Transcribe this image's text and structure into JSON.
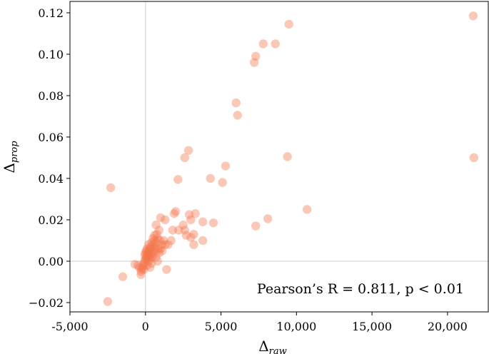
{
  "chart_data": {
    "type": "scatter",
    "xlabel": "Δ",
    "xlabel_sub": "raw",
    "ylabel": "Δ",
    "ylabel_sub": "prop",
    "xlim": [
      -5000,
      22700
    ],
    "ylim": [
      -0.0245,
      0.1255
    ],
    "xticks": [
      -5000,
      0,
      5000,
      10000,
      15000,
      20000
    ],
    "xtick_labels": [
      "-5,000",
      "0",
      "5,000",
      "10,000",
      "15,000",
      "20,000"
    ],
    "yticks": [
      -0.02,
      0.0,
      0.02,
      0.04,
      0.06,
      0.08,
      0.1,
      0.12
    ],
    "ytick_labels": [
      "−0.02",
      "0.00",
      "0.02",
      "0.04",
      "0.06",
      "0.08",
      "0.10",
      "0.12"
    ],
    "annotation": "Pearson’s R = 0.811, p < 0.01",
    "annotation_position": "bottom-right",
    "reference_lines": {
      "x": 0,
      "y": 0
    },
    "grid": false,
    "point_color": "#f4754a",
    "points": [
      [
        21700,
        0.1185
      ],
      [
        21750,
        0.05
      ],
      [
        9500,
        0.1145
      ],
      [
        8600,
        0.105
      ],
      [
        7800,
        0.105
      ],
      [
        7300,
        0.099
      ],
      [
        7200,
        0.096
      ],
      [
        6000,
        0.0765
      ],
      [
        6100,
        0.0705
      ],
      [
        2850,
        0.0535
      ],
      [
        2600,
        0.05
      ],
      [
        2150,
        0.0395
      ],
      [
        5300,
        0.046
      ],
      [
        4300,
        0.04
      ],
      [
        5100,
        0.038
      ],
      [
        9400,
        0.0505
      ],
      [
        10700,
        0.025
      ],
      [
        8100,
        0.0205
      ],
      [
        7300,
        0.017
      ],
      [
        -2300,
        0.0355
      ],
      [
        -2500,
        -0.0195
      ],
      [
        -1500,
        -0.0075
      ],
      [
        3800,
        0.019
      ],
      [
        4500,
        0.0185
      ],
      [
        3300,
        0.023
      ],
      [
        2900,
        0.0225
      ],
      [
        3000,
        0.02
      ],
      [
        2000,
        0.024
      ],
      [
        1900,
        0.023
      ],
      [
        2500,
        0.0175
      ],
      [
        2600,
        0.015
      ],
      [
        2200,
        0.015
      ],
      [
        1300,
        0.02
      ],
      [
        1000,
        0.021
      ],
      [
        1700,
        0.01
      ],
      [
        1800,
        0.015
      ],
      [
        2700,
        0.0125
      ],
      [
        3200,
        0.013
      ],
      [
        3000,
        0.0115
      ],
      [
        3800,
        0.01
      ],
      [
        3200,
        0.008
      ],
      [
        1400,
        -0.004
      ],
      [
        1100,
        0.005
      ],
      [
        1300,
        0.008
      ],
      [
        1500,
        0.008
      ],
      [
        1200,
        0.01
      ],
      [
        900,
        0.015
      ],
      [
        700,
        0.0175
      ],
      [
        600,
        0.0125
      ],
      [
        500,
        0.011
      ],
      [
        400,
        0.009
      ],
      [
        350,
        0.007
      ],
      [
        300,
        0.006
      ],
      [
        250,
        0.005
      ],
      [
        200,
        0.0045
      ],
      [
        150,
        0.0035
      ],
      [
        100,
        0.0025
      ],
      [
        50,
        0.002
      ],
      [
        0,
        0.001
      ],
      [
        -50,
        0.0
      ],
      [
        -100,
        -0.001
      ],
      [
        -150,
        -0.002
      ],
      [
        -200,
        -0.003
      ],
      [
        -250,
        -0.004
      ],
      [
        -300,
        -0.005
      ],
      [
        -400,
        -0.003
      ],
      [
        -500,
        -0.002
      ],
      [
        -700,
        -0.0015
      ],
      [
        -300,
        -0.0065
      ],
      [
        -100,
        -0.004
      ],
      [
        100,
        -0.002
      ],
      [
        200,
        0.0
      ],
      [
        300,
        0.001
      ],
      [
        400,
        0.003
      ],
      [
        500,
        0.005
      ],
      [
        600,
        0.007
      ],
      [
        700,
        0.009
      ],
      [
        800,
        0.011
      ],
      [
        600,
        0.004
      ],
      [
        700,
        0.002
      ],
      [
        800,
        0.0
      ],
      [
        900,
        0.004
      ],
      [
        1000,
        0.006
      ],
      [
        1100,
        0.008
      ],
      [
        400,
        -0.001
      ],
      [
        300,
        -0.003
      ],
      [
        200,
        0.008
      ],
      [
        100,
        0.006
      ],
      [
        0,
        0.004
      ],
      [
        -50,
        0.003
      ],
      [
        500,
        0.008
      ],
      [
        600,
        0.01
      ],
      [
        750,
        0.013
      ],
      [
        850,
        0.006
      ],
      [
        950,
        0.01
      ],
      [
        450,
        0.002
      ],
      [
        650,
        0.006
      ],
      [
        350,
        0.004
      ],
      [
        250,
        0.0025
      ],
      [
        150,
        0.0015
      ],
      [
        50,
        0.005
      ]
    ]
  }
}
